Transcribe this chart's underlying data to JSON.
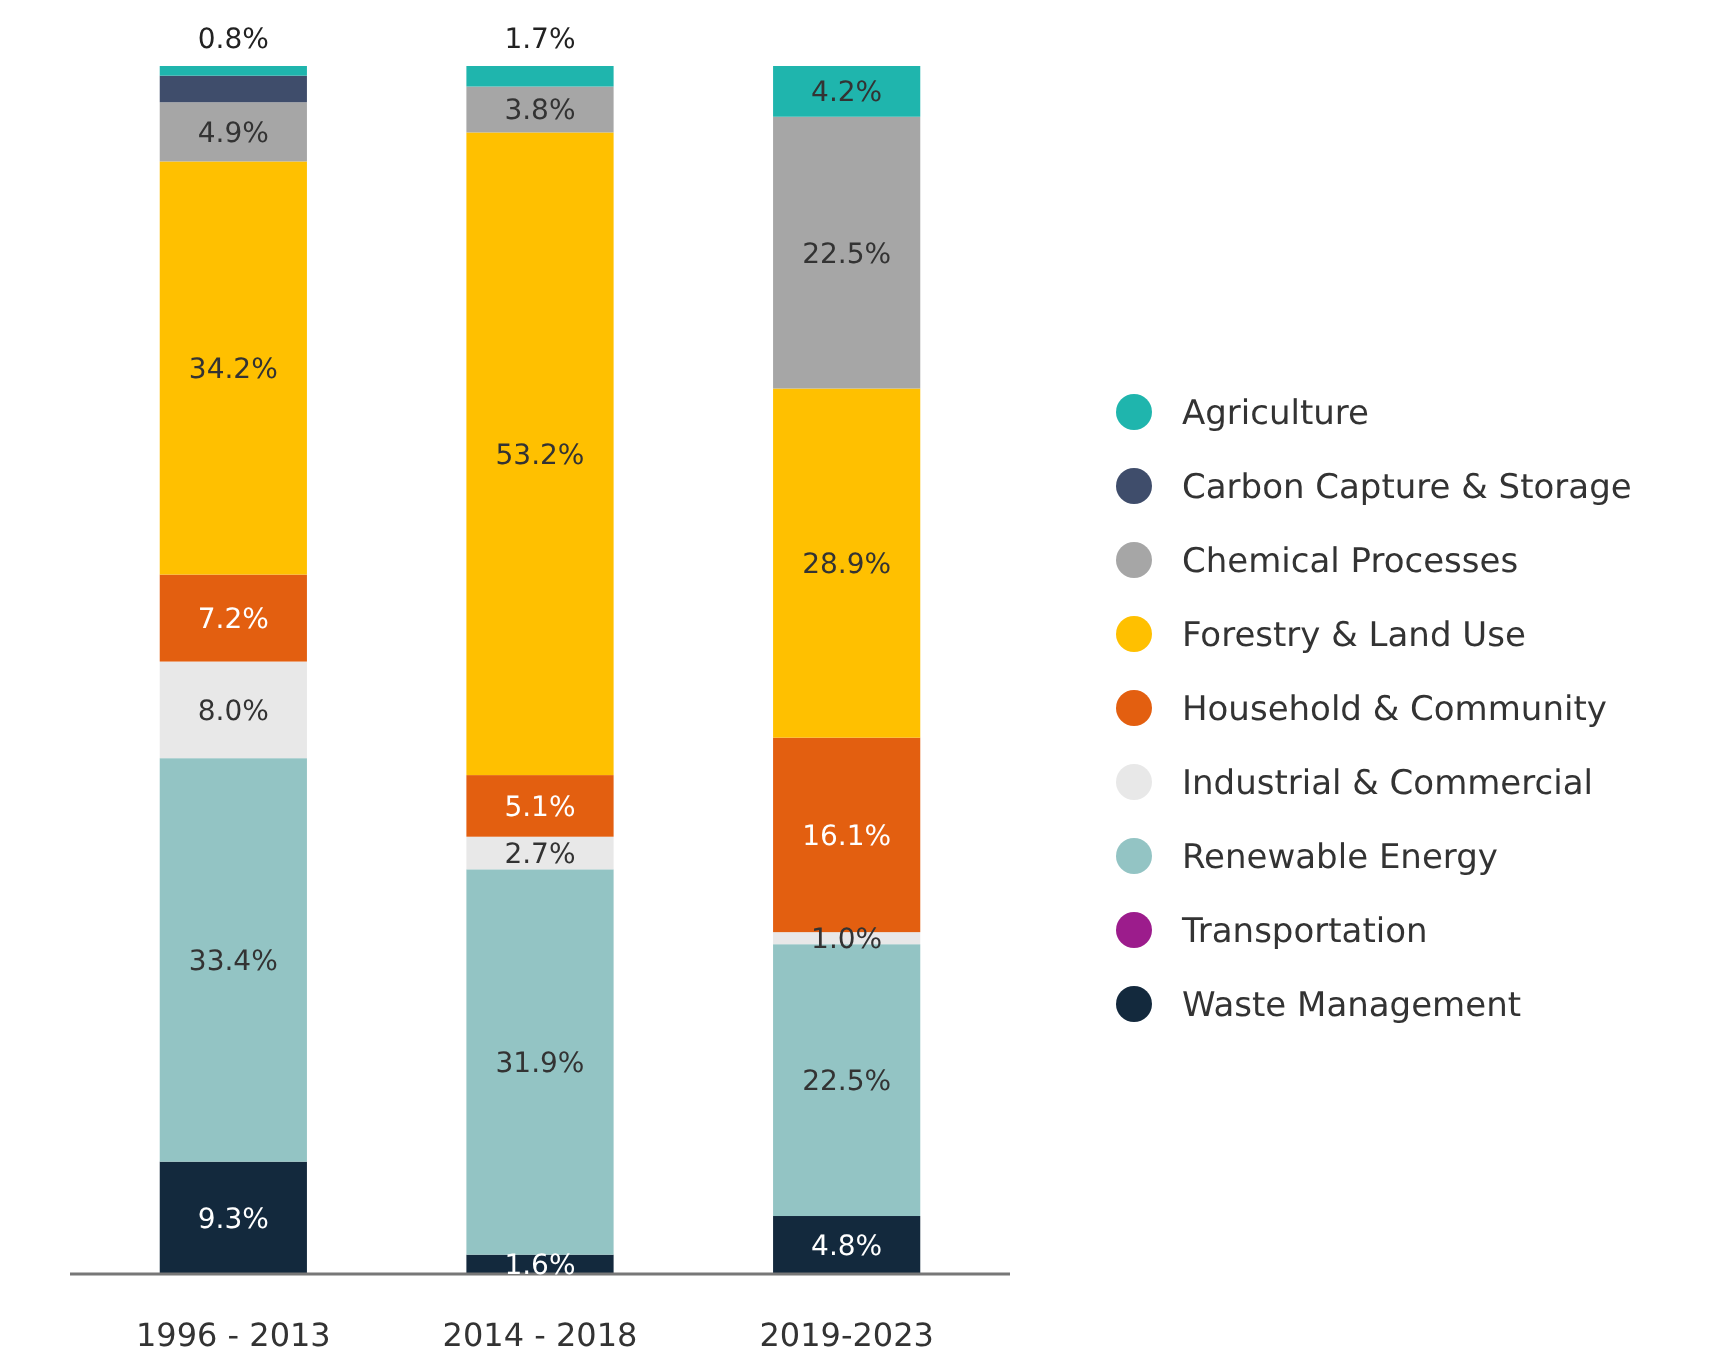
{
  "chart_data": {
    "type": "bar",
    "stacked": true,
    "legend": "right",
    "categories": [
      "1996 - 2013",
      "2014 - 2018",
      "2019-2023"
    ],
    "series": [
      {
        "name": "Waste Management",
        "color": "#13293d",
        "values": [
          9.3,
          1.6,
          4.8
        ],
        "value_labels": [
          "9.3%",
          "1.6%",
          "4.8%"
        ]
      },
      {
        "name": "Transportation",
        "color": "#9c1c8c",
        "values": [
          null,
          null,
          null
        ],
        "value_labels": [
          null,
          null,
          null
        ]
      },
      {
        "name": "Renewable Energy",
        "color": "#93c4c4",
        "values": [
          33.4,
          31.9,
          22.5
        ],
        "value_labels": [
          "33.4%",
          "31.9%",
          "22.5%"
        ]
      },
      {
        "name": "Industrial & Commercial",
        "color": "#e8e8e8",
        "values": [
          8.0,
          2.7,
          1.0
        ],
        "value_labels": [
          "8.0%",
          "2.7%",
          "1.0%"
        ]
      },
      {
        "name": "Household & Community",
        "color": "#e35f10",
        "values": [
          7.2,
          5.1,
          16.1
        ],
        "value_labels": [
          "7.2%",
          "5.1%",
          "16.1%"
        ]
      },
      {
        "name": "Forestry & Land Use",
        "color": "#ffc000",
        "values": [
          34.2,
          53.2,
          28.9
        ],
        "value_labels": [
          "34.2%",
          "53.2%",
          "28.9%"
        ]
      },
      {
        "name": "Chemical Processes",
        "color": "#a6a6a6",
        "values": [
          4.9,
          3.8,
          22.5
        ],
        "value_labels": [
          "4.9%",
          "3.8%",
          "22.5%"
        ]
      },
      {
        "name": "Carbon Capture & Storage",
        "color": "#3f4d6b",
        "values": [
          2.2,
          null,
          null
        ],
        "value_labels": [
          null,
          null,
          null
        ]
      },
      {
        "name": "Agriculture",
        "color": "#1fb5ad",
        "values": [
          0.8,
          1.7,
          4.2
        ],
        "value_labels": [
          "0.8%",
          "1.7%",
          "4.2%"
        ]
      }
    ]
  }
}
